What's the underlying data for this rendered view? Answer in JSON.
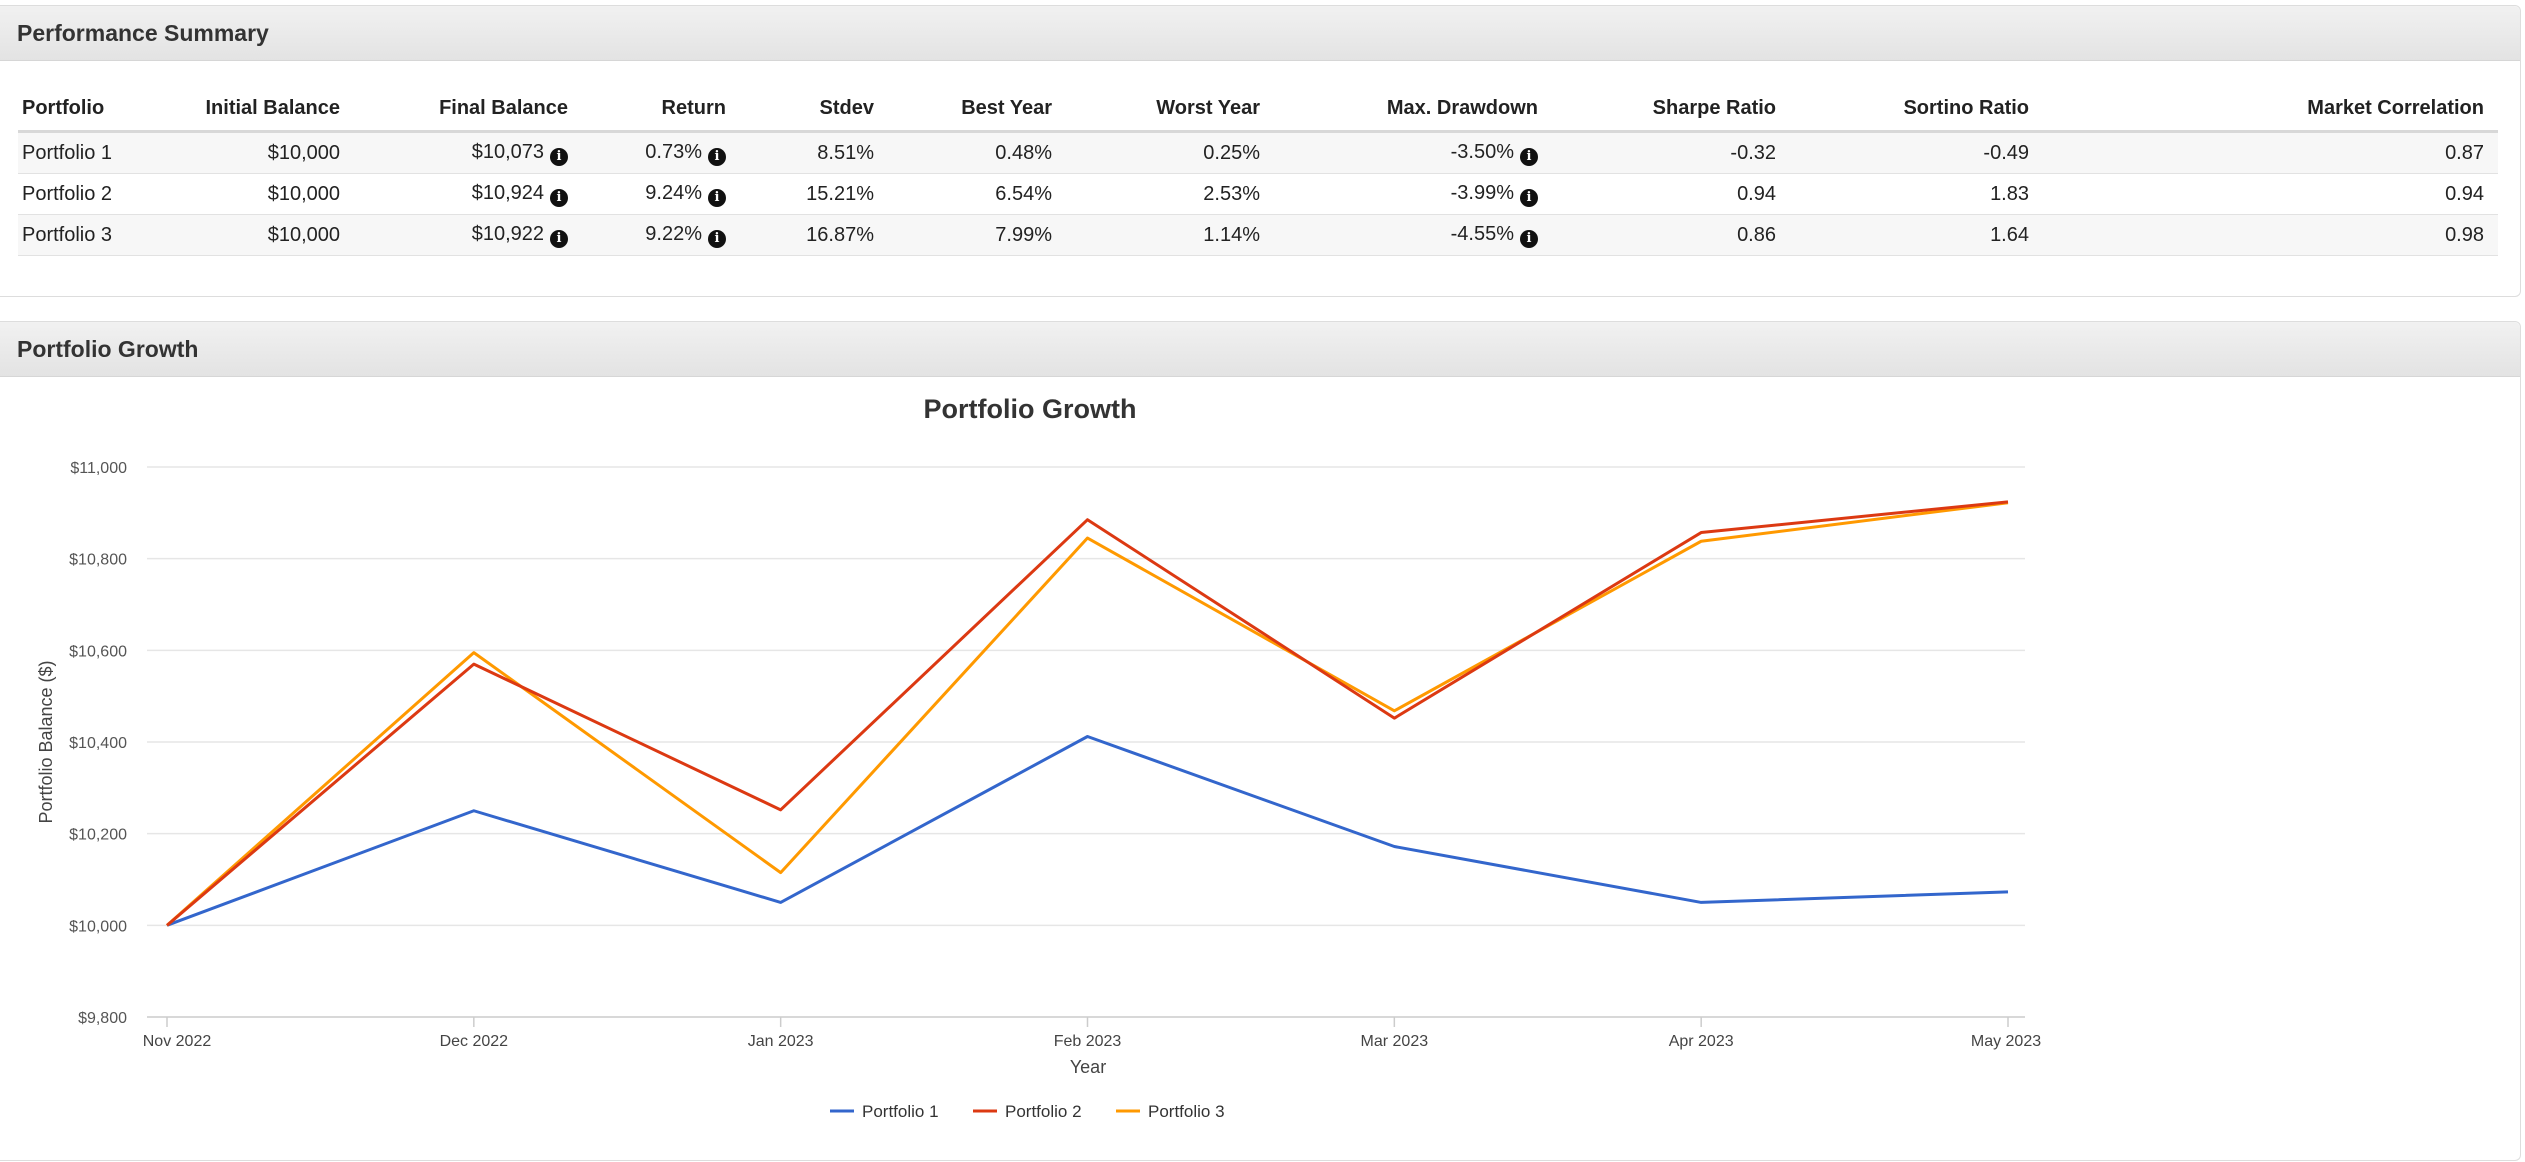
{
  "summary": {
    "title": "Performance Summary",
    "columns": [
      "Portfolio",
      "Initial Balance",
      "Final Balance",
      "Return",
      "Stdev",
      "Best Year",
      "Worst Year",
      "Max. Drawdown",
      "Sharpe Ratio",
      "Sortino Ratio",
      "Market Correlation"
    ],
    "rows": [
      {
        "portfolio": "Portfolio 1",
        "initial": "$10,000",
        "final": "$10,073",
        "ret": "0.73%",
        "stdev": "8.51%",
        "best": "0.48%",
        "worst": "0.25%",
        "drawdown": "-3.50%",
        "sharpe": "-0.32",
        "sortino": "-0.49",
        "corr": "0.87"
      },
      {
        "portfolio": "Portfolio 2",
        "initial": "$10,000",
        "final": "$10,924",
        "ret": "9.24%",
        "stdev": "15.21%",
        "best": "6.54%",
        "worst": "2.53%",
        "drawdown": "-3.99%",
        "sharpe": "0.94",
        "sortino": "1.83",
        "corr": "0.94"
      },
      {
        "portfolio": "Portfolio 3",
        "initial": "$10,000",
        "final": "$10,922",
        "ret": "9.22%",
        "stdev": "16.87%",
        "best": "7.99%",
        "worst": "1.14%",
        "drawdown": "-4.55%",
        "sharpe": "0.86",
        "sortino": "1.64",
        "corr": "0.98"
      }
    ],
    "info_glyph": "i"
  },
  "growth": {
    "title": "Portfolio Growth"
  },
  "chart_data": {
    "type": "line",
    "title": "Portfolio Growth",
    "xlabel": "Year",
    "ylabel": "Portfolio Balance ($)",
    "categories": [
      "Nov 2022",
      "Dec 2022",
      "Jan 2023",
      "Feb 2023",
      "Mar 2023",
      "Apr 2023",
      "May 2023"
    ],
    "ylim": [
      9800,
      11000
    ],
    "yticks": [
      9800,
      10000,
      10200,
      10400,
      10600,
      10800,
      11000
    ],
    "ytick_labels": [
      "$9,800",
      "$10,000",
      "$10,200",
      "$10,400",
      "$10,600",
      "$10,800",
      "$11,000"
    ],
    "grid": true,
    "legend": "bottom",
    "series": [
      {
        "name": "Portfolio 1",
        "color": "#3366cc",
        "values": [
          10000,
          10250,
          10050,
          10412,
          10172,
          10050,
          10073
        ]
      },
      {
        "name": "Portfolio 2",
        "color": "#dc3912",
        "values": [
          10000,
          10570,
          10252,
          10885,
          10452,
          10857,
          10924
        ]
      },
      {
        "name": "Portfolio 3",
        "color": "#ff9900",
        "values": [
          10000,
          10595,
          10115,
          10845,
          10468,
          10838,
          10922
        ]
      }
    ]
  }
}
